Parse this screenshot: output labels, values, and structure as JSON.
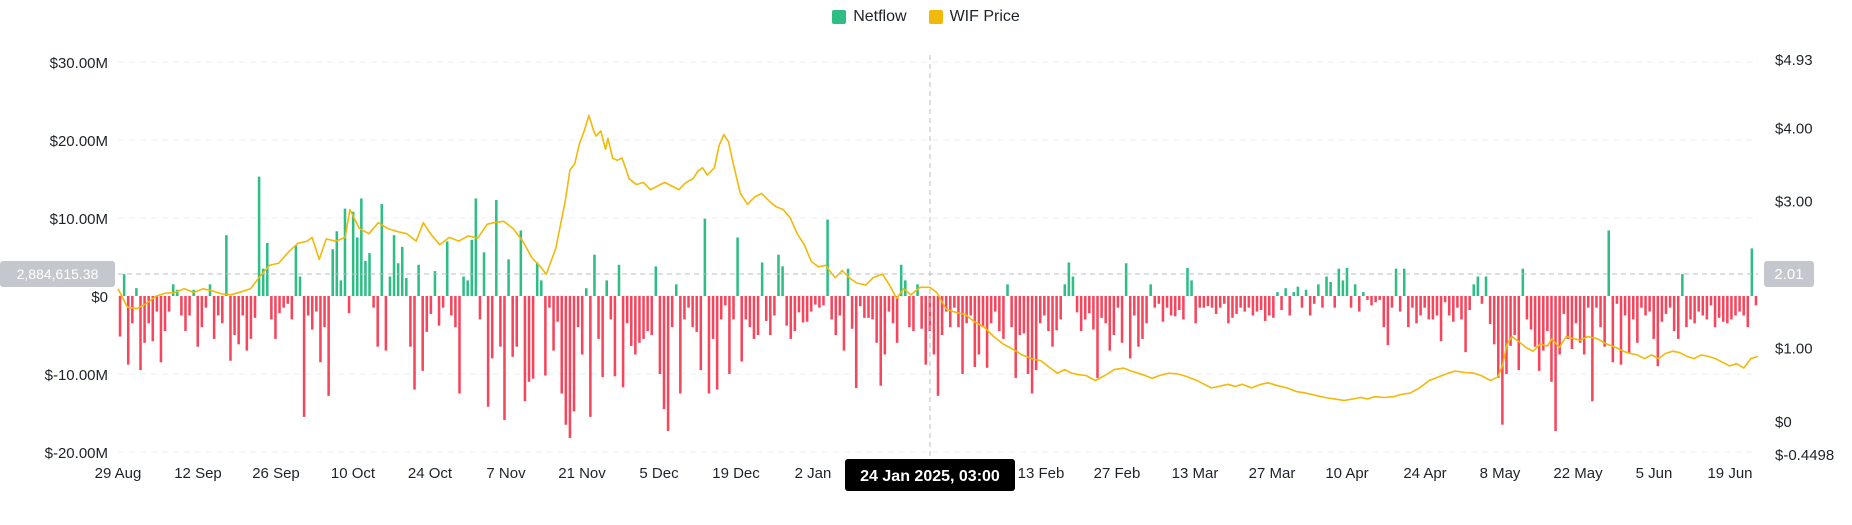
{
  "legend": [
    {
      "label": "Netflow",
      "color": "#2ebd85"
    },
    {
      "label": "WIF Price",
      "color": "#f0b90b"
    }
  ],
  "crosshair": {
    "date_label": "24 Jan 2025, 03:00",
    "left_value": "2,884,615.38",
    "right_value": "2.01"
  },
  "chart_data": {
    "type": "bar",
    "series": [
      {
        "name": "Netflow",
        "type": "bar",
        "axis": "left",
        "positive_color": "#2ebd85",
        "negative_color": "#f6465d"
      },
      {
        "name": "WIF Price",
        "type": "line",
        "axis": "right",
        "color": "#f0b90b"
      }
    ],
    "x_tick_labels": [
      "29 Aug",
      "12 Sep",
      "26 Sep",
      "10 Oct",
      "24 Oct",
      "7 Nov",
      "21 Nov",
      "5 Dec",
      "19 Dec",
      "2 Jan",
      "13 Feb",
      "27 Feb",
      "13 Mar",
      "27 Mar",
      "10 Apr",
      "24 Apr",
      "8 May",
      "22 May",
      "5 Jun",
      "19 Jun"
    ],
    "left_axis": {
      "tick_labels": [
        "$30.00M",
        "$20.00M",
        "$10.00M",
        "$0",
        "$-10.00M",
        "$-20.00M"
      ],
      "ylim_millions": [
        -20,
        30
      ]
    },
    "right_axis": {
      "tick_labels": [
        "$4.93",
        "$4.00",
        "$3.00",
        "2.01",
        "$1.00",
        "$0",
        "$-0.4498"
      ],
      "ylim": [
        -0.4498,
        4.93
      ]
    },
    "grid": true,
    "legend_position": "top-center",
    "netflow_millions": [
      -5.2,
      2.8,
      -8.8,
      -3.5,
      1,
      -9.5,
      -6,
      -3.5,
      -5.8,
      -2,
      -8.5,
      -4.5,
      -2,
      1.5,
      0.8,
      -2.5,
      -4.5,
      -2.5,
      0.8,
      -6.5,
      -4,
      -1.5,
      1.5,
      -5.5,
      -2.5,
      -3.5,
      7.8,
      -8.3,
      -5,
      -6.2,
      -2.5,
      -7,
      -5.5,
      -2.8,
      15.3,
      3.5,
      6.8,
      -3,
      -5.5,
      -2.2,
      -1.5,
      -1,
      -3,
      6.5,
      2.5,
      -15.5,
      -2.5,
      -4.3,
      -2,
      -8.5,
      -4,
      -12.8,
      6,
      8.3,
      2,
      11.2,
      -2.2,
      10.8,
      7.5,
      12.5,
      4.5,
      5.5,
      -1.5,
      -6.5,
      11.8,
      -7,
      2.5,
      7.8,
      4.2,
      6.3,
      2.3,
      -6.5,
      -12,
      4,
      -9.6,
      -4.6,
      -2.3,
      3.2,
      -3.8,
      -1.5,
      7,
      -2.5,
      -4,
      -12.5,
      2.5,
      2,
      7.2,
      12.5,
      -3,
      5.6,
      -14.2,
      -8,
      12.3,
      -6.5,
      -15.9,
      4.7,
      -7.8,
      -6.5,
      8.4,
      -13.5,
      -11,
      -10.6,
      4.3,
      2,
      -10.2,
      -1.5,
      -7,
      -3.3,
      -12.5,
      -16.5,
      -18.2,
      -14.8,
      -4,
      -7.5,
      1,
      -15.5,
      5.3,
      -5.5,
      -10.4,
      2,
      -3,
      -10.3,
      4,
      -11.7,
      -3.5,
      -6.4,
      -7.5,
      -6,
      -5.5,
      -4.5,
      -5,
      3.8,
      -10,
      -14.5,
      -17.3,
      -4,
      1.5,
      -12.5,
      -3,
      -1.5,
      -4,
      -4.6,
      -9.5,
      9.9,
      -12.5,
      -5.5,
      -12,
      -3,
      -1.2,
      -10,
      -3,
      7.5,
      -8.4,
      -3,
      -4,
      -5.5,
      -5,
      4.3,
      -3.2,
      -5,
      -2.5,
      5.3,
      3.8,
      -3.8,
      -5.5,
      -4.5,
      -2.1,
      -3.4,
      -3.3,
      -2,
      -1.1,
      -1.5,
      -1.2,
      9.8,
      -3,
      -5,
      -2.5,
      -7,
      3.5,
      -4.2,
      -11.8,
      -1.3,
      -2.8,
      -2.8,
      -3,
      -6,
      -11.5,
      -7.5,
      -2,
      -3.5,
      -6,
      4,
      2,
      -4,
      -4.5,
      1.5,
      -4.2,
      -8.8,
      -4.5,
      -7.5,
      -12.8,
      -5,
      -2,
      -4,
      -1.5,
      -4,
      -10,
      -3.5,
      -2.5,
      -9.1,
      -7.5,
      -4,
      -9.2,
      -3.5,
      -2,
      -4.5,
      -5.5,
      1.5,
      -4,
      -10.5,
      -5,
      -4.8,
      -10,
      -12.5,
      -9.5,
      -3.5,
      -2.5,
      -4.5,
      -6.5,
      -4.4,
      -3,
      1.5,
      4.3,
      2.5,
      -2.1,
      -4.5,
      -3,
      -2.2,
      -4.3,
      -10.5,
      -2.8,
      -3.5,
      -7,
      -5,
      -1.5,
      -6,
      4.2,
      -8,
      -2.5,
      -6.5,
      -5.5,
      -3.5,
      1.5,
      -1.5,
      -1,
      -3.3,
      -1.5,
      -2.5,
      -2.6,
      -1.8,
      -3,
      3.6,
      2,
      -3.5,
      -1.5,
      -1.5,
      -1.3,
      -1.5,
      -2.3,
      -1.5,
      -1,
      -3.5,
      -2.8,
      -2.3,
      -1.5,
      -2,
      -1.5,
      -2.5,
      -2,
      -1.8,
      -3.2,
      -2.5,
      -2.8,
      0.5,
      -1.8,
      1,
      -2.5,
      0.5,
      1.2,
      -1.5,
      0.8,
      -2.5,
      -1,
      1.5,
      -1.5,
      2.5,
      1.8,
      -1.5,
      3.5,
      2,
      3.6,
      -1.5,
      1.5,
      -2,
      0.5,
      -0.5,
      -1.2,
      -0.8,
      -0.5,
      -4,
      -6.3,
      -1.5,
      3.5,
      -2,
      3.5,
      -4,
      -1.5,
      -3.5,
      -2.5,
      -1.5,
      -3,
      -3,
      -2.5,
      -5.8,
      -0.8,
      -2.5,
      -3.3,
      -1.5,
      -3,
      -7.2,
      -1.8,
      1.5,
      2.5,
      -1,
      2.5,
      -3.6,
      -6.2,
      -10.5,
      -16.5,
      -10,
      -6.4,
      -5,
      -9.5,
      3.5,
      -3,
      -4.3,
      -6.5,
      -9.6,
      -7,
      -4.5,
      -11,
      -17.3,
      -7.5,
      -2.3,
      -5.5,
      -6.8,
      -3.5,
      -6,
      -7.5,
      -1.5,
      -13.5,
      -1.5,
      -4,
      -6.5,
      8.4,
      -8.5,
      -1,
      -8.8,
      -2.5,
      -7.4,
      -3,
      -6,
      -1.5,
      -2.5,
      -2,
      -5.5,
      -9,
      -3.3,
      -2.3,
      -1.5,
      -4.5,
      -5.5,
      2.8,
      -4,
      -3,
      -3.5,
      -2,
      -2.5,
      -3,
      -1.2,
      -4,
      -2.8,
      -3.3,
      -3.5,
      -3,
      -2.5,
      -2,
      -2.5,
      -4,
      6.1,
      -1.2
    ],
    "wif_price": [
      [
        0,
        1.8
      ],
      [
        8,
        1.55
      ],
      [
        16,
        1.53
      ],
      [
        24,
        1.6
      ],
      [
        32,
        1.7
      ],
      [
        40,
        1.74
      ],
      [
        48,
        1.75
      ],
      [
        56,
        1.8
      ],
      [
        64,
        1.75
      ],
      [
        72,
        1.8
      ],
      [
        80,
        1.77
      ],
      [
        88,
        1.73
      ],
      [
        96,
        1.72
      ],
      [
        104,
        1.76
      ],
      [
        112,
        1.8
      ],
      [
        120,
        1.97
      ],
      [
        128,
        2.12
      ],
      [
        136,
        2.15
      ],
      [
        144,
        2.3
      ],
      [
        152,
        2.42
      ],
      [
        160,
        2.45
      ],
      [
        164,
        2.5
      ],
      [
        170,
        2.2
      ],
      [
        176,
        2.48
      ],
      [
        184,
        2.45
      ],
      [
        192,
        2.5
      ],
      [
        196,
        2.88
      ],
      [
        204,
        2.62
      ],
      [
        212,
        2.55
      ],
      [
        220,
        2.7
      ],
      [
        228,
        2.62
      ],
      [
        236,
        2.58
      ],
      [
        244,
        2.55
      ],
      [
        252,
        2.45
      ],
      [
        258,
        2.7
      ],
      [
        264,
        2.55
      ],
      [
        272,
        2.4
      ],
      [
        280,
        2.5
      ],
      [
        288,
        2.45
      ],
      [
        296,
        2.52
      ],
      [
        304,
        2.49
      ],
      [
        312,
        2.68
      ],
      [
        318,
        2.7
      ],
      [
        326,
        2.72
      ],
      [
        334,
        2.62
      ],
      [
        342,
        2.45
      ],
      [
        350,
        2.22
      ],
      [
        356,
        2.12
      ],
      [
        362,
        2.0
      ],
      [
        370,
        2.35
      ],
      [
        378,
        3.0
      ],
      [
        382,
        3.42
      ],
      [
        386,
        3.5
      ],
      [
        390,
        3.78
      ],
      [
        394,
        3.95
      ],
      [
        398,
        4.16
      ],
      [
        402,
        3.95
      ],
      [
        404,
        3.88
      ],
      [
        408,
        3.95
      ],
      [
        412,
        3.7
      ],
      [
        414,
        3.85
      ],
      [
        418,
        3.58
      ],
      [
        422,
        3.55
      ],
      [
        426,
        3.58
      ],
      [
        432,
        3.3
      ],
      [
        438,
        3.22
      ],
      [
        444,
        3.25
      ],
      [
        450,
        3.15
      ],
      [
        456,
        3.2
      ],
      [
        462,
        3.25
      ],
      [
        468,
        3.2
      ],
      [
        474,
        3.15
      ],
      [
        480,
        3.25
      ],
      [
        486,
        3.3
      ],
      [
        490,
        3.4
      ],
      [
        494,
        3.45
      ],
      [
        498,
        3.35
      ],
      [
        504,
        3.45
      ],
      [
        508,
        3.75
      ],
      [
        512,
        3.9
      ],
      [
        516,
        3.8
      ],
      [
        520,
        3.5
      ],
      [
        526,
        3.1
      ],
      [
        532,
        2.95
      ],
      [
        538,
        3.05
      ],
      [
        544,
        3.1
      ],
      [
        550,
        3.0
      ],
      [
        556,
        2.92
      ],
      [
        562,
        2.88
      ],
      [
        568,
        2.77
      ],
      [
        574,
        2.55
      ],
      [
        580,
        2.4
      ],
      [
        586,
        2.17
      ],
      [
        592,
        2.1
      ],
      [
        598,
        2.12
      ],
      [
        606,
        1.95
      ],
      [
        612,
        2.05
      ],
      [
        618,
        1.95
      ],
      [
        624,
        1.88
      ],
      [
        632,
        1.85
      ],
      [
        638,
        1.95
      ],
      [
        646,
        2.0
      ],
      [
        652,
        1.85
      ],
      [
        658,
        1.67
      ],
      [
        664,
        1.8
      ],
      [
        670,
        1.72
      ],
      [
        678,
        1.82
      ],
      [
        686,
        1.82
      ],
      [
        692,
        1.75
      ],
      [
        700,
        1.52
      ],
      [
        708,
        1.48
      ],
      [
        716,
        1.45
      ],
      [
        724,
        1.35
      ],
      [
        732,
        1.28
      ],
      [
        740,
        1.15
      ],
      [
        748,
        1.05
      ],
      [
        756,
        0.98
      ],
      [
        764,
        0.9
      ],
      [
        772,
        0.85
      ],
      [
        780,
        0.82
      ],
      [
        788,
        0.72
      ],
      [
        794,
        0.65
      ],
      [
        800,
        0.7
      ],
      [
        806,
        0.65
      ],
      [
        812,
        0.63
      ],
      [
        818,
        0.62
      ],
      [
        826,
        0.55
      ],
      [
        834,
        0.62
      ],
      [
        842,
        0.7
      ],
      [
        850,
        0.72
      ],
      [
        856,
        0.68
      ],
      [
        862,
        0.65
      ],
      [
        868,
        0.62
      ],
      [
        874,
        0.58
      ],
      [
        880,
        0.62
      ],
      [
        888,
        0.65
      ],
      [
        896,
        0.64
      ],
      [
        904,
        0.6
      ],
      [
        912,
        0.55
      ],
      [
        918,
        0.5
      ],
      [
        924,
        0.45
      ],
      [
        930,
        0.47
      ],
      [
        938,
        0.5
      ],
      [
        944,
        0.47
      ],
      [
        950,
        0.5
      ],
      [
        958,
        0.45
      ],
      [
        966,
        0.5
      ],
      [
        972,
        0.52
      ],
      [
        980,
        0.48
      ],
      [
        988,
        0.45
      ],
      [
        996,
        0.4
      ],
      [
        1004,
        0.38
      ],
      [
        1012,
        0.35
      ],
      [
        1020,
        0.32
      ],
      [
        1028,
        0.3
      ],
      [
        1036,
        0.28
      ],
      [
        1044,
        0.3
      ],
      [
        1050,
        0.32
      ],
      [
        1056,
        0.3
      ],
      [
        1062,
        0.33
      ],
      [
        1070,
        0.32
      ],
      [
        1078,
        0.33
      ],
      [
        1084,
        0.36
      ],
      [
        1092,
        0.38
      ],
      [
        1100,
        0.45
      ],
      [
        1108,
        0.55
      ],
      [
        1116,
        0.6
      ],
      [
        1124,
        0.65
      ],
      [
        1130,
        0.68
      ],
      [
        1138,
        0.66
      ],
      [
        1146,
        0.65
      ],
      [
        1152,
        0.62
      ],
      [
        1160,
        0.55
      ],
      [
        1166,
        0.6
      ],
      [
        1170,
        0.75
      ],
      [
        1174,
        1.05
      ],
      [
        1178,
        1.15
      ],
      [
        1184,
        1.08
      ],
      [
        1190,
        1.0
      ],
      [
        1196,
        0.95
      ],
      [
        1202,
        1.05
      ],
      [
        1208,
        1.02
      ],
      [
        1212,
        1.12
      ],
      [
        1218,
        1.0
      ],
      [
        1224,
        1.15
      ],
      [
        1230,
        1.12
      ],
      [
        1236,
        1.1
      ],
      [
        1242,
        1.15
      ],
      [
        1250,
        1.12
      ],
      [
        1258,
        1.05
      ],
      [
        1266,
        1.0
      ],
      [
        1272,
        0.95
      ],
      [
        1278,
        0.92
      ],
      [
        1284,
        0.9
      ],
      [
        1290,
        0.85
      ],
      [
        1296,
        0.9
      ],
      [
        1302,
        0.85
      ],
      [
        1308,
        0.92
      ],
      [
        1314,
        0.95
      ],
      [
        1320,
        0.93
      ],
      [
        1326,
        0.88
      ],
      [
        1332,
        0.85
      ],
      [
        1338,
        0.9
      ],
      [
        1344,
        0.88
      ],
      [
        1350,
        0.85
      ],
      [
        1356,
        0.8
      ],
      [
        1362,
        0.75
      ],
      [
        1368,
        0.78
      ],
      [
        1374,
        0.72
      ],
      [
        1380,
        0.85
      ],
      [
        1386,
        0.88
      ]
    ]
  }
}
